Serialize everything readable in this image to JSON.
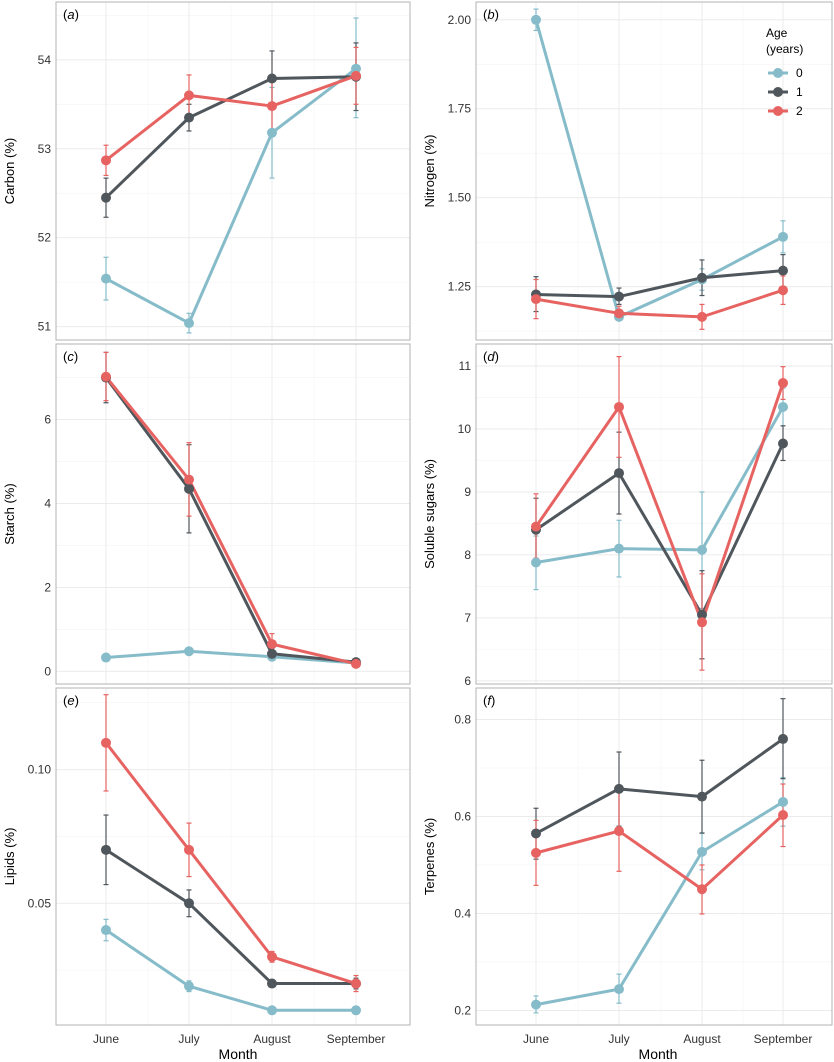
{
  "figure": {
    "x_axis_title": "Month",
    "legend": {
      "title_line1": "Age",
      "title_line2": "(years)",
      "entries": [
        "0",
        "1",
        "2"
      ],
      "placement": "top-right of panel b"
    }
  },
  "colors": {
    "age_0": "#86BCC9",
    "age_1": "#50575C",
    "age_2": "#E66361",
    "grid": "#EBEBEB",
    "panel_border": "#B3B3B3"
  },
  "chart_data": [
    {
      "type": "line",
      "panel_label": "a",
      "ylabel": "Carbon (%)",
      "categories": [
        "June",
        "July",
        "August",
        "September"
      ],
      "ylim": [
        50.85,
        54.65
      ],
      "yticks": [
        51,
        52,
        53,
        54
      ],
      "ytick_labels": [
        "51",
        "52",
        "53",
        "54"
      ],
      "series": [
        {
          "name": "0",
          "values": [
            51.54,
            51.04,
            53.18,
            53.9
          ],
          "err_low": [
            51.3,
            50.93,
            52.67,
            53.35
          ],
          "err_high": [
            51.78,
            51.15,
            53.69,
            54.47
          ]
        },
        {
          "name": "1",
          "values": [
            52.45,
            53.35,
            53.79,
            53.81
          ],
          "err_low": [
            52.23,
            53.2,
            53.48,
            53.43
          ],
          "err_high": [
            52.67,
            53.5,
            54.1,
            54.19
          ]
        },
        {
          "name": "2",
          "values": [
            52.87,
            53.6,
            53.48,
            53.82
          ],
          "err_low": [
            52.7,
            53.37,
            53.2,
            53.5
          ],
          "err_high": [
            53.04,
            53.83,
            53.76,
            54.14
          ]
        }
      ]
    },
    {
      "type": "line",
      "panel_label": "b",
      "ylabel": "Nitrogen (%)",
      "categories": [
        "June",
        "July",
        "August",
        "September"
      ],
      "ylim": [
        1.1,
        2.05
      ],
      "yticks": [
        1.25,
        1.5,
        1.75,
        2.0
      ],
      "ytick_labels": [
        "1.25",
        "1.50",
        "1.75",
        "2.00"
      ],
      "series": [
        {
          "name": "0",
          "values": [
            2.0,
            1.165,
            1.27,
            1.39
          ],
          "err_low": [
            1.97,
            1.155,
            1.24,
            1.345
          ],
          "err_high": [
            2.03,
            1.175,
            1.3,
            1.435
          ]
        },
        {
          "name": "1",
          "values": [
            1.228,
            1.222,
            1.275,
            1.295
          ],
          "err_low": [
            1.18,
            1.2,
            1.225,
            1.25
          ],
          "err_high": [
            1.278,
            1.246,
            1.325,
            1.34
          ]
        },
        {
          "name": "2",
          "values": [
            1.215,
            1.175,
            1.165,
            1.24
          ],
          "err_low": [
            1.16,
            1.155,
            1.13,
            1.2
          ],
          "err_high": [
            1.27,
            1.195,
            1.2,
            1.28
          ]
        }
      ]
    },
    {
      "type": "line",
      "panel_label": "c",
      "ylabel": "Starch (%)",
      "categories": [
        "June",
        "July",
        "August",
        "September"
      ],
      "ylim": [
        -0.3,
        7.8
      ],
      "yticks": [
        0,
        2,
        4,
        6
      ],
      "ytick_labels": [
        "0",
        "2",
        "4",
        "6"
      ],
      "series": [
        {
          "name": "0",
          "values": [
            0.33,
            0.48,
            0.35,
            0.2
          ],
          "err_low": [
            0.31,
            0.45,
            0.32,
            0.18
          ],
          "err_high": [
            0.35,
            0.51,
            0.38,
            0.22
          ]
        },
        {
          "name": "1",
          "values": [
            7.0,
            4.35,
            0.42,
            0.22
          ],
          "err_low": [
            6.4,
            3.3,
            0.3,
            0.18
          ],
          "err_high": [
            7.6,
            5.4,
            0.55,
            0.26
          ]
        },
        {
          "name": "2",
          "values": [
            7.02,
            4.57,
            0.65,
            0.18
          ],
          "err_low": [
            6.45,
            3.7,
            0.45,
            0.14
          ],
          "err_high": [
            7.6,
            5.45,
            0.9,
            0.22
          ]
        }
      ]
    },
    {
      "type": "line",
      "panel_label": "d",
      "ylabel": "Soluble sugars (%)",
      "categories": [
        "June",
        "July",
        "August",
        "September"
      ],
      "ylim": [
        5.95,
        11.35
      ],
      "yticks": [
        6,
        7,
        8,
        9,
        10,
        11
      ],
      "ytick_labels": [
        "6",
        "7",
        "8",
        "9",
        "10",
        "11"
      ],
      "series": [
        {
          "name": "0",
          "values": [
            7.88,
            8.1,
            8.08,
            10.35
          ],
          "err_low": [
            7.45,
            7.65,
            7.15,
            10.05
          ],
          "err_high": [
            8.3,
            8.55,
            9.0,
            10.65
          ]
        },
        {
          "name": "1",
          "values": [
            8.4,
            9.3,
            7.05,
            9.77
          ],
          "err_low": [
            7.9,
            8.65,
            6.35,
            9.5
          ],
          "err_high": [
            8.9,
            9.95,
            7.75,
            10.05
          ]
        },
        {
          "name": "2",
          "values": [
            8.45,
            10.35,
            6.93,
            10.73
          ],
          "err_low": [
            7.95,
            9.55,
            6.17,
            10.47
          ],
          "err_high": [
            8.97,
            11.15,
            7.7,
            10.99
          ]
        }
      ]
    },
    {
      "type": "line",
      "panel_label": "e",
      "ylabel": "Lipids (%)",
      "categories": [
        "June",
        "July",
        "August",
        "September"
      ],
      "ylim": [
        0.0045,
        0.1305
      ],
      "yticks": [
        0.05,
        0.1
      ],
      "ytick_labels": [
        "0.05",
        "0.10"
      ],
      "series": [
        {
          "name": "0",
          "values": [
            0.04,
            0.019,
            0.01,
            0.01
          ],
          "err_low": [
            0.036,
            0.017,
            0.009,
            0.009
          ],
          "err_high": [
            0.044,
            0.021,
            0.011,
            0.011
          ]
        },
        {
          "name": "1",
          "values": [
            0.07,
            0.05,
            0.02,
            0.02
          ],
          "err_low": [
            0.057,
            0.045,
            0.019,
            0.018
          ],
          "err_high": [
            0.083,
            0.055,
            0.021,
            0.022
          ]
        },
        {
          "name": "2",
          "values": [
            0.11,
            0.07,
            0.03,
            0.02
          ],
          "err_low": [
            0.092,
            0.06,
            0.028,
            0.017
          ],
          "err_high": [
            0.128,
            0.08,
            0.032,
            0.023
          ]
        }
      ]
    },
    {
      "type": "line",
      "panel_label": "f",
      "ylabel": "Terpenes (%)",
      "categories": [
        "June",
        "July",
        "August",
        "September"
      ],
      "ylim": [
        0.17,
        0.865
      ],
      "yticks": [
        0.2,
        0.4,
        0.6,
        0.8
      ],
      "ytick_labels": [
        "0.2",
        "0.4",
        "0.6",
        "0.8"
      ],
      "series": [
        {
          "name": "0",
          "values": [
            0.212,
            0.244,
            0.527,
            0.63
          ],
          "err_low": [
            0.195,
            0.215,
            0.49,
            0.58
          ],
          "err_high": [
            0.23,
            0.275,
            0.565,
            0.68
          ]
        },
        {
          "name": "1",
          "values": [
            0.565,
            0.657,
            0.641,
            0.76
          ],
          "err_low": [
            0.512,
            0.58,
            0.566,
            0.678
          ],
          "err_high": [
            0.617,
            0.733,
            0.716,
            0.843
          ]
        },
        {
          "name": "2",
          "values": [
            0.525,
            0.57,
            0.45,
            0.603
          ],
          "err_low": [
            0.458,
            0.487,
            0.399,
            0.538
          ],
          "err_high": [
            0.592,
            0.653,
            0.5,
            0.667
          ]
        }
      ]
    }
  ]
}
